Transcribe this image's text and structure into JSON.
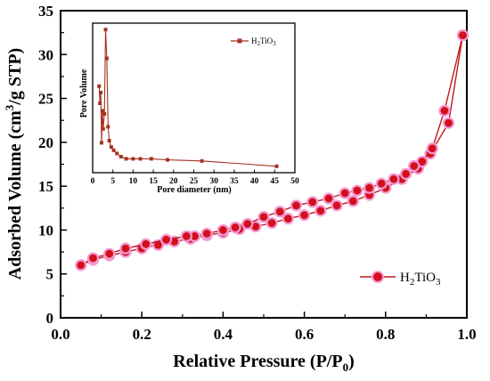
{
  "chart_data": [
    {
      "type": "line",
      "xlabel_main": "Relative Pressure (P/P",
      "xlabel_sub": "0",
      "xlabel_close": ")",
      "ylabel_pre": "Adsorbed Volume (cm",
      "ylabel_sup": "3",
      "ylabel_post": "/g STP)",
      "xlim": [
        0.0,
        1.0
      ],
      "ylim": [
        0,
        35
      ],
      "xticks": [
        "0.0",
        "0.2",
        "0.4",
        "0.6",
        "0.8",
        "1.0"
      ],
      "yticks": [
        "0",
        "5",
        "10",
        "15",
        "20",
        "25",
        "30",
        "35"
      ],
      "legend": {
        "position": "bottom-right",
        "label_pre": "H",
        "label_sub1": "2",
        "label_mid": "TiO",
        "label_sub2": "3"
      },
      "colors": {
        "line": "#c0181e",
        "marker": "#d40f1c",
        "halo": "#f29ad2"
      },
      "series": [
        {
          "kind": "adsorption",
          "x": [
            0.05,
            0.08,
            0.12,
            0.16,
            0.2,
            0.24,
            0.28,
            0.32,
            0.36,
            0.4,
            0.44,
            0.48,
            0.52,
            0.56,
            0.6,
            0.64,
            0.68,
            0.72,
            0.76,
            0.8,
            0.84,
            0.88,
            0.91,
            0.955,
            0.99
          ],
          "y": [
            6.0,
            6.6,
            7.1,
            7.5,
            7.9,
            8.3,
            8.7,
            9.0,
            9.4,
            9.7,
            10.1,
            10.4,
            10.8,
            11.3,
            11.7,
            12.2,
            12.8,
            13.3,
            14.0,
            14.8,
            15.8,
            17.0,
            18.7,
            22.2,
            32.2
          ]
        },
        {
          "kind": "desorption",
          "x": [
            0.99,
            0.945,
            0.915,
            0.89,
            0.87,
            0.85,
            0.82,
            0.79,
            0.76,
            0.73,
            0.7,
            0.66,
            0.62,
            0.58,
            0.54,
            0.5,
            0.46,
            0.43,
            0.4,
            0.36,
            0.33,
            0.31,
            0.26,
            0.21,
            0.16,
            0.12,
            0.08,
            0.05
          ],
          "y": [
            32.2,
            23.6,
            19.3,
            17.8,
            17.3,
            16.4,
            15.8,
            15.3,
            14.8,
            14.5,
            14.2,
            13.6,
            13.2,
            12.8,
            12.1,
            11.5,
            10.7,
            10.3,
            10.0,
            9.6,
            9.3,
            9.3,
            8.9,
            8.4,
            7.9,
            7.3,
            6.8,
            6.0
          ]
        }
      ]
    },
    {
      "type": "line",
      "xlabel": "Pore diameter (nm)",
      "ylabel": "Pore Volume",
      "xlim": [
        0,
        50
      ],
      "xticks": [
        "0",
        "5",
        "10",
        "15",
        "20",
        "25",
        "30",
        "35",
        "40",
        "45",
        "50"
      ],
      "legend": {
        "position": "top-right",
        "label_pre": "H",
        "label_sub1": "2",
        "label_mid": "TiO",
        "label_sub2": "3"
      },
      "colors": {
        "line": "#a5321f",
        "marker": "#a5321f"
      },
      "series": [
        {
          "x": [
            1.6,
            1.8,
            2.0,
            2.2,
            2.4,
            2.6,
            2.9,
            3.2,
            3.5,
            3.8,
            4.1,
            4.6,
            5.2,
            6.0,
            7.0,
            8.3,
            10.0,
            11.8,
            14.5,
            18.5,
            27.0,
            45.5
          ],
          "y": [
            26.6,
            25.0,
            26.0,
            21.3,
            24.3,
            22.6,
            24.0,
            31.9,
            29.2,
            22.8,
            21.5,
            20.9,
            20.6,
            20.3,
            20.0,
            19.8,
            19.8,
            19.8,
            19.8,
            19.7,
            19.6,
            19.1
          ]
        }
      ]
    }
  ]
}
